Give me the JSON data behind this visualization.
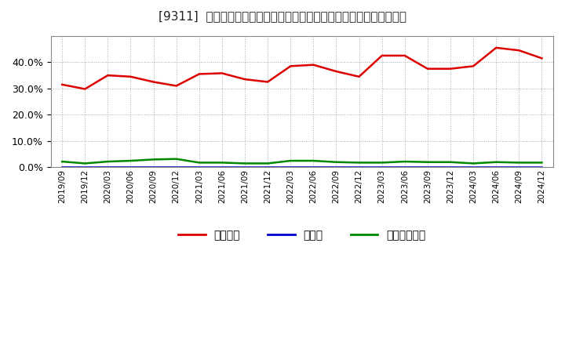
{
  "title": "[9311]  自己資本、のれん、繰延税金資産の総資産に対する比率の推移",
  "x_labels": [
    "2019/09",
    "2019/12",
    "2020/03",
    "2020/06",
    "2020/09",
    "2020/12",
    "2021/03",
    "2021/06",
    "2021/09",
    "2021/12",
    "2022/03",
    "2022/06",
    "2022/09",
    "2022/12",
    "2023/03",
    "2023/06",
    "2023/09",
    "2023/12",
    "2024/03",
    "2024/06",
    "2024/09",
    "2024/12"
  ],
  "equity": [
    31.5,
    29.8,
    35.0,
    34.5,
    32.5,
    31.0,
    35.5,
    35.8,
    33.5,
    32.5,
    38.5,
    39.0,
    36.5,
    34.5,
    42.5,
    42.5,
    37.5,
    37.5,
    38.5,
    45.5,
    44.5,
    41.5
  ],
  "noren": [
    0.0,
    0.0,
    0.0,
    0.0,
    0.0,
    0.0,
    0.0,
    0.0,
    0.0,
    0.0,
    0.0,
    0.0,
    0.0,
    0.0,
    0.0,
    0.0,
    0.0,
    0.0,
    0.0,
    0.0,
    0.0,
    0.0
  ],
  "deferred_tax": [
    2.2,
    1.5,
    2.2,
    2.5,
    3.0,
    3.2,
    1.8,
    1.8,
    1.5,
    1.5,
    2.5,
    2.5,
    2.0,
    1.8,
    1.8,
    2.2,
    2.0,
    2.0,
    1.5,
    2.0,
    1.8,
    1.8
  ],
  "equity_color": "#dd0000",
  "noren_color": "#0000cc",
  "deferred_color": "#008800",
  "bg_color": "#ffffff",
  "plot_bg_color": "#ffffff",
  "grid_color": "#aaaaaa",
  "ylim": [
    0,
    50
  ],
  "yticks": [
    0,
    10.0,
    20.0,
    30.0,
    40.0
  ],
  "legend_labels": [
    "自己資本",
    "のれん",
    "繰延税金資産"
  ]
}
